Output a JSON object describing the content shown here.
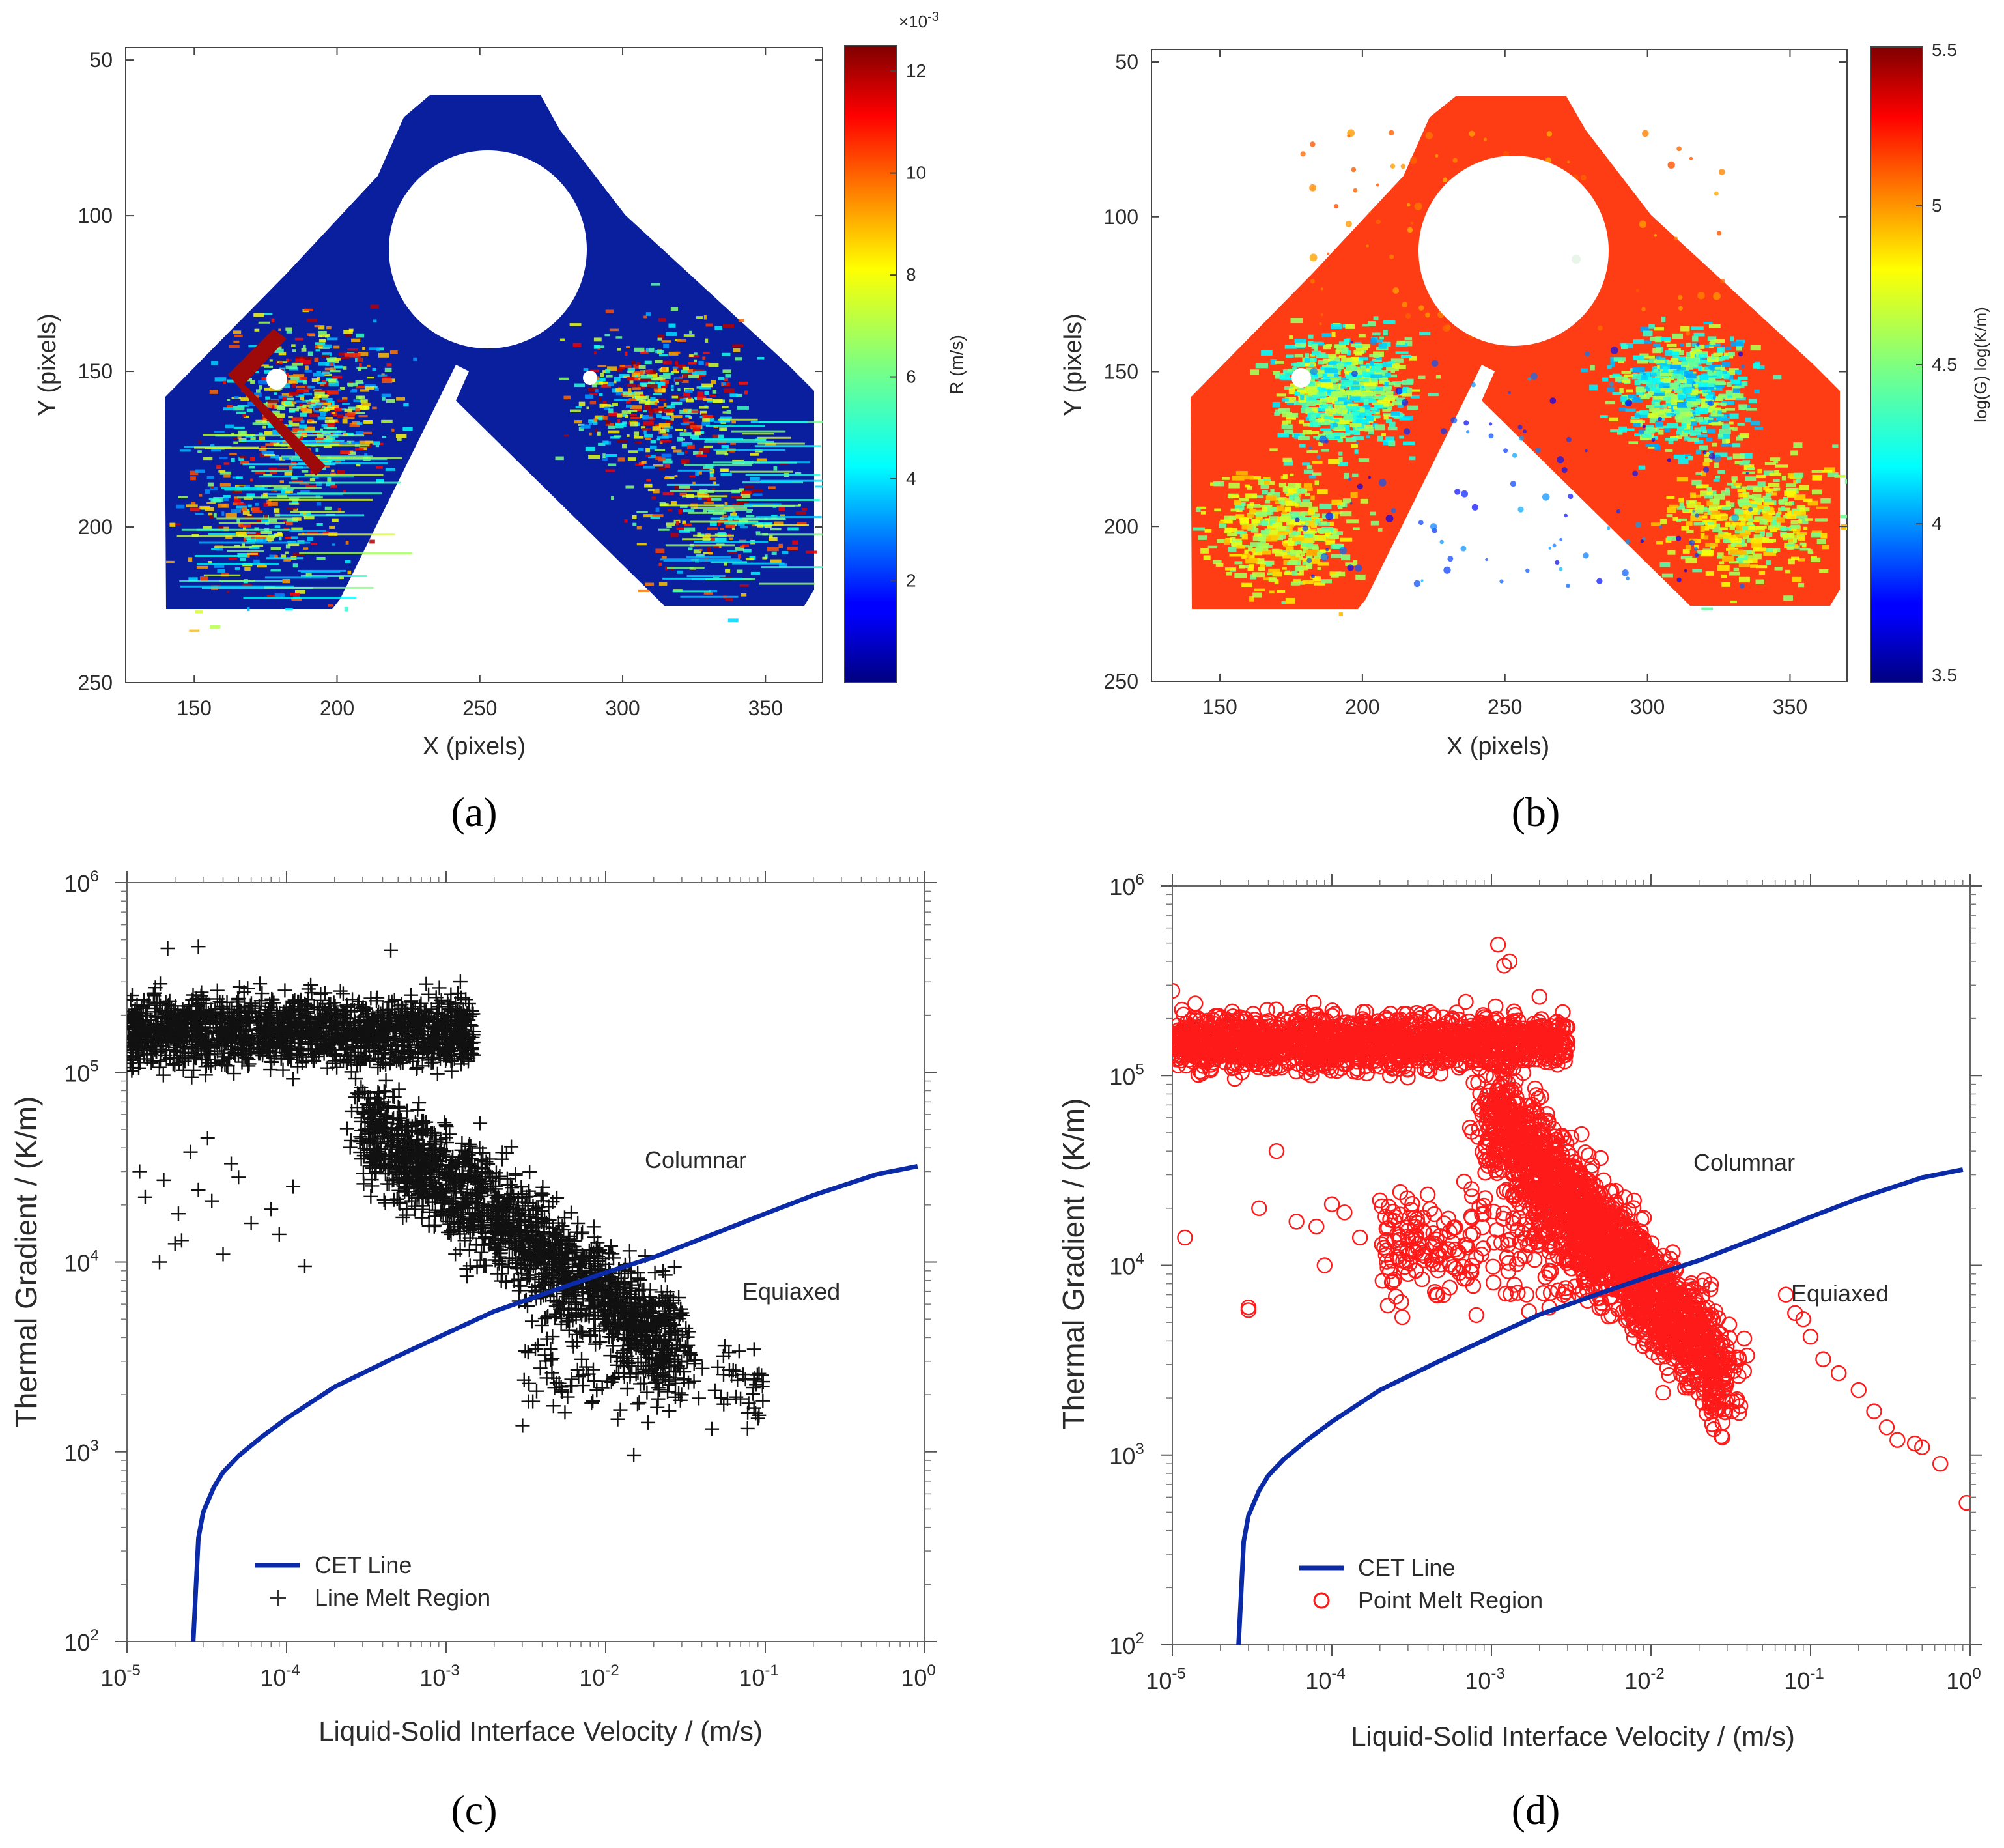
{
  "chart_data": [
    {
      "panel": "a",
      "type": "heatmap",
      "caption": "(a)",
      "xlabel": "X (pixels)",
      "ylabel": "Y (pixels)",
      "xlim": [
        126,
        370
      ],
      "ylim": [
        46,
        250
      ],
      "y_reversed": true,
      "xticks": [
        150,
        200,
        250,
        300,
        350
      ],
      "yticks": [
        50,
        100,
        150,
        200,
        250
      ],
      "colorbar": {
        "label": "R (m/s)",
        "multiplier": "×10",
        "multiplier_exp": "-3",
        "range": [
          0.0,
          12.5
        ],
        "ticks": [
          2,
          4,
          6,
          8,
          10,
          12
        ],
        "colormap": "jet"
      },
      "background_color": "#0a1f9e"
    },
    {
      "panel": "b",
      "type": "heatmap",
      "caption": "(b)",
      "xlabel": "X (pixels)",
      "ylabel": "Y (pixels)",
      "xlim": [
        126,
        370
      ],
      "ylim": [
        46,
        250
      ],
      "y_reversed": true,
      "xticks": [
        150,
        200,
        250,
        300,
        350
      ],
      "yticks": [
        50,
        100,
        150,
        200,
        250
      ],
      "colorbar": {
        "label": "log(G) log(K/m)",
        "range": [
          3.5,
          5.5
        ],
        "ticks": [
          3.5,
          4,
          4.5,
          5,
          5.5
        ],
        "colormap": "jet"
      },
      "background_color": "#ff3d14"
    },
    {
      "panel": "c",
      "type": "scatter",
      "caption": "(c)",
      "xlabel": "Liquid-Solid Interface Velocity / (m/s)",
      "ylabel": "Thermal Gradient / (K/m)",
      "xscale": "log",
      "yscale": "log",
      "xlim": [
        1e-05,
        1
      ],
      "ylim": [
        100,
        1000000
      ],
      "x_ticks": [
        "10",
        "10",
        "10",
        "10",
        "10",
        "10"
      ],
      "x_tick_exps": [
        "-5",
        "-4",
        "-3",
        "-2",
        "-1",
        "0"
      ],
      "y_ticks": [
        "10",
        "10",
        "10",
        "10",
        "10"
      ],
      "y_tick_exps": [
        "2",
        "3",
        "4",
        "5",
        "6"
      ],
      "annotations": [
        "Columnar",
        "Equiaxed"
      ],
      "legend": {
        "cet": "CET Line",
        "region": "Line Melt Region",
        "placement": "bottom-left"
      },
      "cet_line": {
        "color": "#0a2aa8",
        "x": [
          2.6e-05,
          2.8e-05,
          3e-05,
          3.5e-05,
          4e-05,
          5e-05,
          7e-05,
          0.0001,
          0.0002,
          0.0005,
          0.001,
          0.002,
          0.005,
          0.01,
          0.02,
          0.05,
          0.1,
          0.2,
          0.5,
          0.9
        ],
        "y": [
          100,
          350,
          480,
          650,
          780,
          950,
          1200,
          1500,
          2200,
          3200,
          4200,
          5500,
          7200,
          8800,
          10600,
          14300,
          18000,
          22500,
          29000,
          32000
        ]
      },
      "series": [
        {
          "name": "Line Melt Region",
          "marker": "plus",
          "color": "#111111",
          "x": [
            1.3e-05,
            2.2e-05,
            1.6e-05,
            1.2e-05,
            2.5e-05,
            3.2e-05,
            2.1e-05,
            2.8e-05,
            2e-05,
            1.7e-05,
            3.4e-05,
            4.5e-05,
            6e-05,
            4e-05,
            5e-05,
            8e-05,
            9e-05,
            0.00011,
            0.00013
          ],
          "y": [
            22000,
            13000,
            10000,
            30000,
            38000,
            45000,
            18000,
            24000,
            12500,
            27000,
            21000,
            33000,
            16000,
            11000,
            28000,
            19000,
            14000,
            25000,
            9500
          ]
        }
      ],
      "clusters": [
        {
          "x_range": [
            1e-05,
            0.0015
          ],
          "y_range": [
            85000,
            320000
          ],
          "count": 1600
        },
        {
          "x_range": [
            0.0003,
            0.03
          ],
          "y_range": [
            2800,
            60000
          ],
          "count": 1800,
          "trend": "down-right"
        },
        {
          "x_range": [
            0.003,
            0.1
          ],
          "y_range": [
            1000,
            6000
          ],
          "count": 120
        }
      ],
      "outliers": [
        {
          "x": 1.8e-05,
          "y": 450000
        },
        {
          "x": 2.8e-05,
          "y": 460000
        },
        {
          "x": 0.00045,
          "y": 440000
        },
        {
          "x": 0.09,
          "y": 1500
        },
        {
          "x": 0.085,
          "y": 1700
        },
        {
          "x": 0.015,
          "y": 960
        },
        {
          "x": 0.07,
          "y": 1900
        }
      ]
    },
    {
      "panel": "d",
      "type": "scatter",
      "caption": "(d)",
      "xlabel": "Liquid-Solid Interface Velocity / (m/s)",
      "ylabel": "Thermal Gradient / (K/m)",
      "xscale": "log",
      "yscale": "log",
      "xlim": [
        1e-05,
        1
      ],
      "ylim": [
        100,
        1000000
      ],
      "x_ticks": [
        "10",
        "10",
        "10",
        "10",
        "10",
        "10"
      ],
      "x_tick_exps": [
        "-5",
        "-4",
        "-3",
        "-2",
        "-1",
        "0"
      ],
      "y_ticks": [
        "10",
        "10",
        "10",
        "10",
        "10"
      ],
      "y_tick_exps": [
        "2",
        "3",
        "4",
        "5",
        "6"
      ],
      "annotations": [
        "Columnar",
        "Equiaxed"
      ],
      "legend": {
        "cet": "CET Line",
        "region": "Point Melt Region",
        "placement": "bottom-left"
      },
      "cet_line": {
        "color": "#0a2aa8",
        "x": [
          2.6e-05,
          2.8e-05,
          3e-05,
          3.5e-05,
          4e-05,
          5e-05,
          7e-05,
          0.0001,
          0.0002,
          0.0005,
          0.001,
          0.002,
          0.005,
          0.01,
          0.02,
          0.05,
          0.1,
          0.2,
          0.5,
          0.9
        ],
        "y": [
          100,
          350,
          480,
          650,
          780,
          950,
          1200,
          1500,
          2200,
          3200,
          4200,
          5500,
          7200,
          8800,
          10600,
          14300,
          18000,
          22500,
          29000,
          32000
        ]
      },
      "series": [
        {
          "name": "Point Melt Region",
          "marker": "circle",
          "color": "#ff1a1a",
          "x": [
            1.2e-05,
            3.5e-05,
            6e-05,
            3e-05,
            8e-05,
            9e-05,
            0.00012,
            0.00015,
            0.00022,
            0.00025,
            0.0003,
            0.00045,
            0.0002,
            0.00035,
            0.0007,
            0.0001,
            0.0008
          ],
          "y": [
            14000,
            20000,
            17000,
            6000,
            16000,
            10000,
            19000,
            14000,
            12000,
            18000,
            9000,
            7000,
            22000,
            13000,
            8500,
            21000,
            11000
          ]
        }
      ],
      "clusters": [
        {
          "x_range": [
            1e-05,
            0.003
          ],
          "y_range": [
            90000,
            250000
          ],
          "count": 1500
        },
        {
          "x_range": [
            0.001,
            0.03
          ],
          "y_range": [
            2000,
            70000
          ],
          "count": 1800,
          "trend": "down-right"
        },
        {
          "x_range": [
            0.0002,
            0.005
          ],
          "y_range": [
            4000,
            40000
          ],
          "count": 250
        }
      ],
      "outliers": [
        {
          "x": 0.0011,
          "y": 490000
        },
        {
          "x": 0.0012,
          "y": 380000
        },
        {
          "x": 0.0013,
          "y": 400000
        },
        {
          "x": 0.002,
          "y": 260000
        },
        {
          "x": 0.003,
          "y": 180000
        },
        {
          "x": 1e-05,
          "y": 280000
        },
        {
          "x": 4.5e-05,
          "y": 40000
        },
        {
          "x": 3e-05,
          "y": 5800
        },
        {
          "x": 0.1,
          "y": 4200
        },
        {
          "x": 0.12,
          "y": 3200
        },
        {
          "x": 0.15,
          "y": 2700
        },
        {
          "x": 0.2,
          "y": 2200
        },
        {
          "x": 0.25,
          "y": 1700
        },
        {
          "x": 0.3,
          "y": 1400
        },
        {
          "x": 0.35,
          "y": 1200
        },
        {
          "x": 0.45,
          "y": 1150
        },
        {
          "x": 0.5,
          "y": 1100
        },
        {
          "x": 0.65,
          "y": 900
        },
        {
          "x": 0.95,
          "y": 560
        },
        {
          "x": 0.07,
          "y": 7000
        },
        {
          "x": 0.08,
          "y": 5600
        },
        {
          "x": 0.09,
          "y": 5200
        }
      ]
    }
  ]
}
